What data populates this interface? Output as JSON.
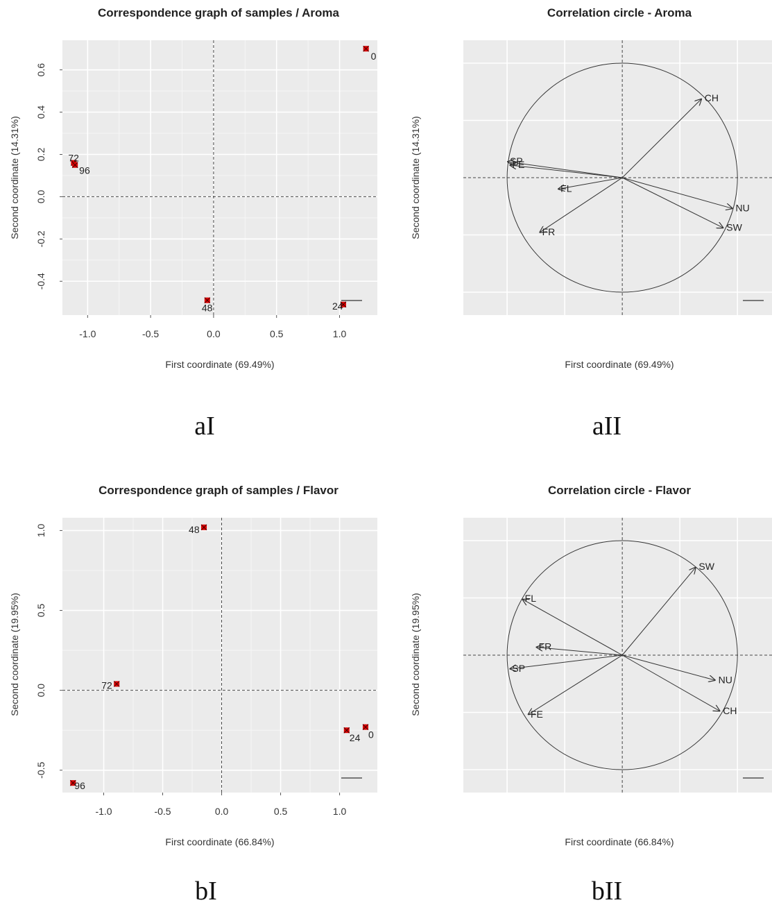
{
  "captions": [
    "aI",
    "aII",
    "bI",
    "bII"
  ],
  "chart_data": [
    {
      "type": "scatter",
      "title": "Correspondence graph of samples / Aroma",
      "xlabel": "First coordinate (69.49%)",
      "ylabel": "Second coordinate (14.31%)",
      "xlim": [
        -1.2,
        1.3
      ],
      "ylim": [
        -0.56,
        0.74
      ],
      "xticks": [
        "-1.0",
        "-0.5",
        "0.0",
        "0.5",
        "1.0"
      ],
      "xtick_values": [
        -1.0,
        -0.5,
        0.0,
        0.5,
        1.0
      ],
      "yticks": [
        "-0.4",
        "-0.2",
        "0.0",
        "0.2",
        "0.4",
        "0.6"
      ],
      "ytick_values": [
        -0.4,
        -0.2,
        0.0,
        0.2,
        0.4,
        0.6
      ],
      "points": [
        {
          "label": "0",
          "x": 1.21,
          "y": 0.7
        },
        {
          "label": "72",
          "x": -1.11,
          "y": 0.16
        },
        {
          "label": "96",
          "x": -1.1,
          "y": 0.15
        },
        {
          "label": "48",
          "x": -0.05,
          "y": -0.49
        },
        {
          "label": "24",
          "x": 1.03,
          "y": -0.51
        }
      ],
      "reference_lines": [
        0,
        0
      ],
      "grid": true
    },
    {
      "type": "scatter",
      "title": "Correlation circle - Aroma",
      "xlabel": "First coordinate (69.49%)",
      "ylabel": "Second coordinate (14.31%)",
      "xlim": [
        -1.38,
        1.3
      ],
      "ylim": [
        -1.2,
        1.2
      ],
      "circle_radius": 1,
      "vectors": [
        {
          "label": "CH",
          "x": 0.69,
          "y": 0.69
        },
        {
          "label": "SP",
          "x": -1.0,
          "y": 0.14
        },
        {
          "label": "FE",
          "x": -0.98,
          "y": 0.11
        },
        {
          "label": "FL",
          "x": -0.56,
          "y": -0.1
        },
        {
          "label": "FR",
          "x": -0.72,
          "y": -0.48
        },
        {
          "label": "NU",
          "x": 0.96,
          "y": -0.27
        },
        {
          "label": "SW",
          "x": 0.88,
          "y": -0.44
        }
      ],
      "grid": true
    },
    {
      "type": "scatter",
      "title": "Correspondence graph of samples / Flavor",
      "xlabel": "First coordinate (66.84%)",
      "ylabel": "Second coordinate (19.95%)",
      "xlim": [
        -1.35,
        1.32
      ],
      "ylim": [
        -0.64,
        1.08
      ],
      "xticks": [
        "-1.0",
        "-0.5",
        "0.0",
        "0.5",
        "1.0"
      ],
      "xtick_values": [
        -1.0,
        -0.5,
        0.0,
        0.5,
        1.0
      ],
      "yticks": [
        "-0.5",
        "0.0",
        "0.5",
        "1.0"
      ],
      "ytick_values": [
        -0.5,
        0.0,
        0.5,
        1.0
      ],
      "points": [
        {
          "label": "48",
          "x": -0.15,
          "y": 1.02
        },
        {
          "label": "72",
          "x": -0.89,
          "y": 0.04
        },
        {
          "label": "24",
          "x": 1.06,
          "y": -0.25
        },
        {
          "label": "0",
          "x": 1.22,
          "y": -0.23
        },
        {
          "label": "96",
          "x": -1.26,
          "y": -0.58
        }
      ],
      "reference_lines": [
        0,
        0
      ],
      "grid": true
    },
    {
      "type": "scatter",
      "title": "Correlation circle - Flavor",
      "xlabel": "First coordinate (66.84%)",
      "ylabel": "Second coordinate (19.95%)",
      "xlim": [
        -1.38,
        1.3
      ],
      "ylim": [
        -1.2,
        1.2
      ],
      "circle_radius": 1,
      "vectors": [
        {
          "label": "SW",
          "x": 0.64,
          "y": 0.77
        },
        {
          "label": "FL",
          "x": -0.87,
          "y": 0.49
        },
        {
          "label": "FR",
          "x": -0.75,
          "y": 0.07
        },
        {
          "label": "SP",
          "x": -0.98,
          "y": -0.12
        },
        {
          "label": "FE",
          "x": -0.82,
          "y": -0.52
        },
        {
          "label": "NU",
          "x": 0.81,
          "y": -0.22
        },
        {
          "label": "CH",
          "x": 0.85,
          "y": -0.49
        }
      ],
      "grid": true
    }
  ]
}
